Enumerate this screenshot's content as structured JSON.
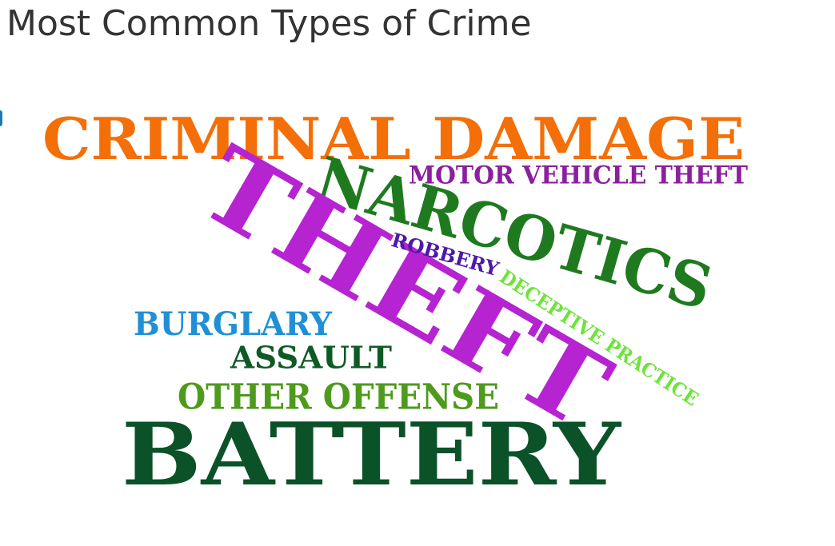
{
  "chart_data": {
    "type": "wordcloud",
    "title": "Most Common Types of Crime",
    "words": [
      {
        "text": "THEFT",
        "color": "#b623d1"
      },
      {
        "text": "BATTERY",
        "color": "#0b5229"
      },
      {
        "text": "CRIMINAL DAMAGE",
        "color": "#f46f07"
      },
      {
        "text": "NARCOTICS",
        "color": "#1f7a1f"
      },
      {
        "text": "OTHER OFFENSE",
        "color": "#4e9a1d"
      },
      {
        "text": "BURGLARY",
        "color": "#1f90d6"
      },
      {
        "text": "ASSAULT",
        "color": "#0e5a24"
      },
      {
        "text": "MOTOR VEHICLE THEFT",
        "color": "#8b1f9e"
      },
      {
        "text": "DECEPTIVE PRACTICE",
        "color": "#6ee33a"
      },
      {
        "text": "ROBBERY",
        "color": "#4b1aa6"
      }
    ]
  }
}
